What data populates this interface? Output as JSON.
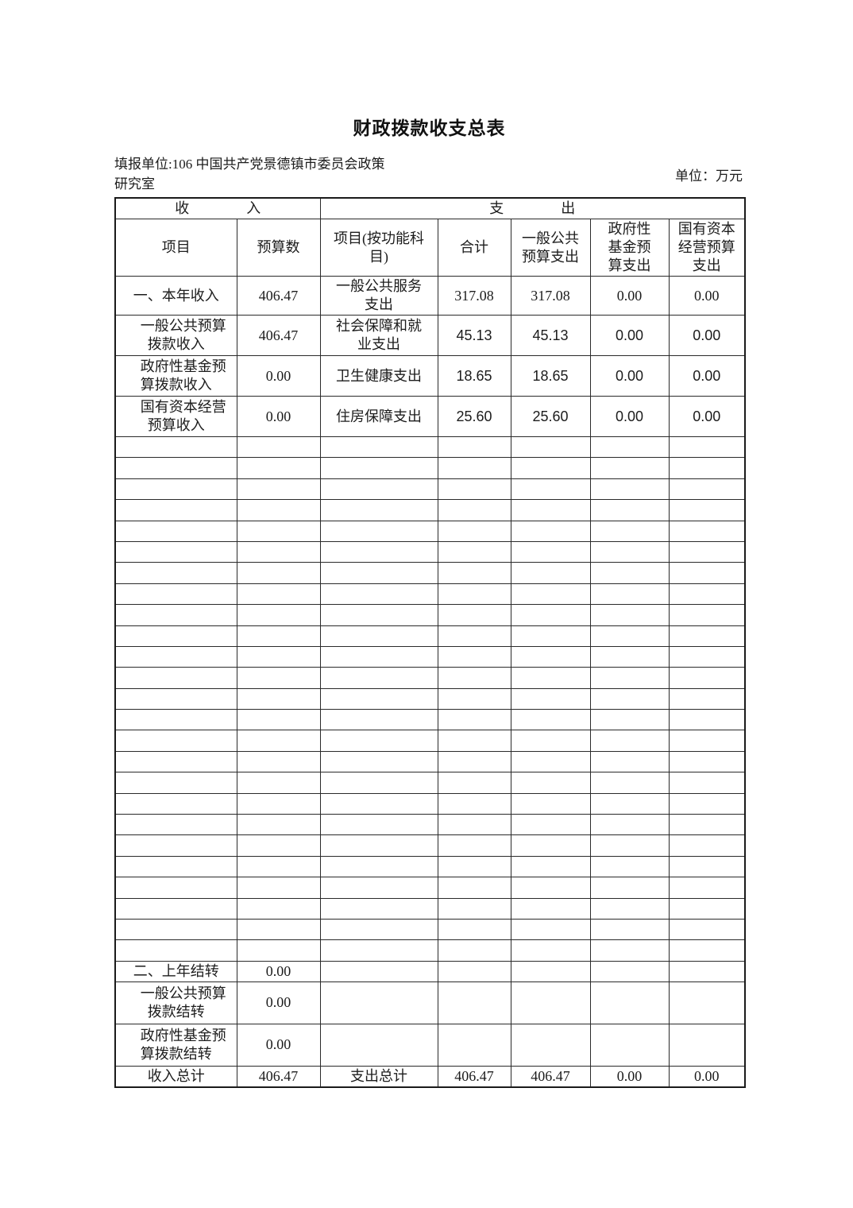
{
  "title": "财政拨款收支总表",
  "meta": {
    "report_unit": "填报单位:106 中国共产党景德镇市委员会政策\n研究室",
    "currency_unit": "单位：万元"
  },
  "table": {
    "section_headers": {
      "income": "收　　　　入",
      "expense": "支　　　　出"
    },
    "column_headers": {
      "income_item": "项目",
      "income_budget": "预算数",
      "expense_item": "项目(按功能科\n目)",
      "total": "合计",
      "general_public": "一般公共\n预算支出",
      "gov_fund": "政府性\n基金预\n算支出",
      "state_capital": "国有资本\n经营预算\n支出"
    },
    "rows": [
      {
        "income_item": "一、本年收入",
        "income_budget": "406.47",
        "expense_item": "一般公共服务\n支出",
        "total": "317.08",
        "general_public": "317.08",
        "gov_fund": "0.00",
        "state_capital": "0.00"
      },
      {
        "income_item": "　一般公共预算\n拨款收入",
        "income_budget": "406.47",
        "expense_item": "社会保障和就\n业支出",
        "total": "45.13",
        "general_public": "45.13",
        "gov_fund": "0.00",
        "state_capital": "0.00"
      },
      {
        "income_item": "　政府性基金预\n算拨款收入",
        "income_budget": "0.00",
        "expense_item": "卫生健康支出",
        "total": "18.65",
        "general_public": "18.65",
        "gov_fund": "0.00",
        "state_capital": "0.00"
      },
      {
        "income_item": "　国有资本经营\n预算收入",
        "income_budget": "0.00",
        "expense_item": "住房保障支出",
        "total": "25.60",
        "general_public": "25.60",
        "gov_fund": "0.00",
        "state_capital": "0.00"
      }
    ],
    "empty_row_count": 25,
    "carryover_rows": [
      {
        "income_item": "二、上年结转",
        "income_budget": "0.00"
      },
      {
        "income_item": "　一般公共预算\n拨款结转",
        "income_budget": "0.00"
      },
      {
        "income_item": "　政府性基金预\n算拨款结转",
        "income_budget": "0.00"
      }
    ],
    "total_row": {
      "income_item": "收入总计",
      "income_budget": "406.47",
      "expense_item": "支出总计",
      "total": "406.47",
      "general_public": "406.47",
      "gov_fund": "0.00",
      "state_capital": "0.00"
    }
  }
}
